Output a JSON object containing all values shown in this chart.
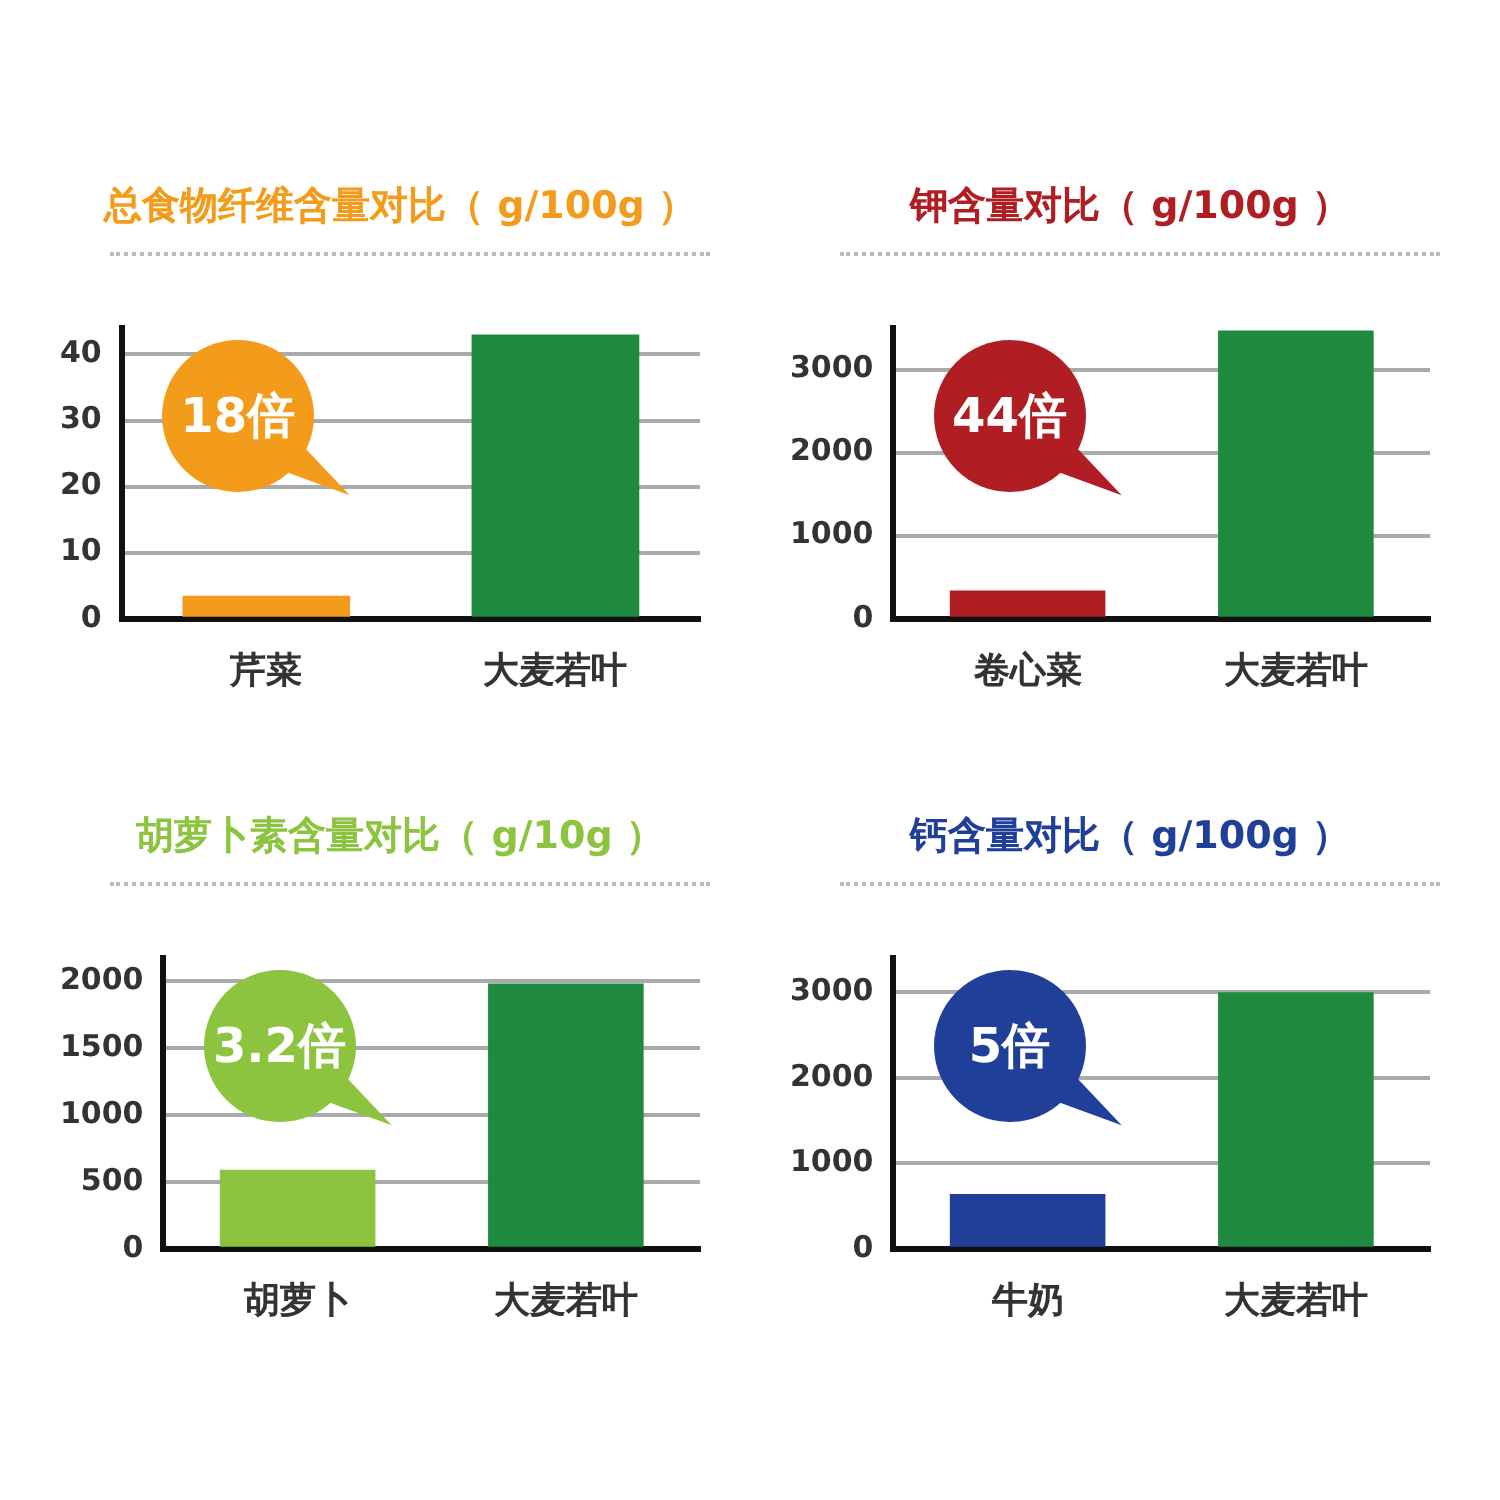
{
  "chart_data": [
    {
      "type": "bar",
      "title": "总食物纤维含量对比（ g/100g ）",
      "categories": [
        "芹菜",
        "大麦若叶"
      ],
      "values": [
        3.5,
        43
      ],
      "colors": [
        "#f39c1b",
        "#1e8a3e"
      ],
      "ylim": [
        0,
        44
      ],
      "yticks": [
        0,
        10,
        20,
        30,
        40
      ],
      "grid": "y",
      "legend": false,
      "annotations": [
        "18倍"
      ]
    },
    {
      "type": "bar",
      "title": "钾含量对比（ g/100g ）",
      "categories": [
        "卷心菜",
        "大麦若叶"
      ],
      "values": [
        340,
        3470
      ],
      "colors": [
        "#b01e23",
        "#1e8a3e"
      ],
      "ylim": [
        0,
        3500
      ],
      "yticks": [
        0,
        1000,
        2000,
        3000
      ],
      "grid": "y",
      "legend": false,
      "annotations": [
        "44倍"
      ]
    },
    {
      "type": "bar",
      "title": "胡萝卜素含量对比（ g/10g ）",
      "categories": [
        "胡萝卜",
        "大麦若叶"
      ],
      "values": [
        590,
        1980
      ],
      "colors": [
        "#8cc43f",
        "#1e8a3e"
      ],
      "ylim": [
        0,
        2170
      ],
      "yticks": [
        0,
        500,
        1000,
        1500,
        2000
      ],
      "grid": "y",
      "legend": false,
      "annotations": [
        "3.2倍"
      ]
    },
    {
      "type": "bar",
      "title": "钙含量对比（ g/100g ）",
      "categories": [
        "牛奶",
        "大麦若叶"
      ],
      "values": [
        640,
        3000
      ],
      "colors": [
        "#1f3f99",
        "#1e8a3e"
      ],
      "ylim": [
        0,
        3400
      ],
      "yticks": [
        0,
        1000,
        2000,
        3000
      ],
      "grid": "y",
      "legend": false,
      "annotations": [
        "5倍"
      ]
    }
  ]
}
